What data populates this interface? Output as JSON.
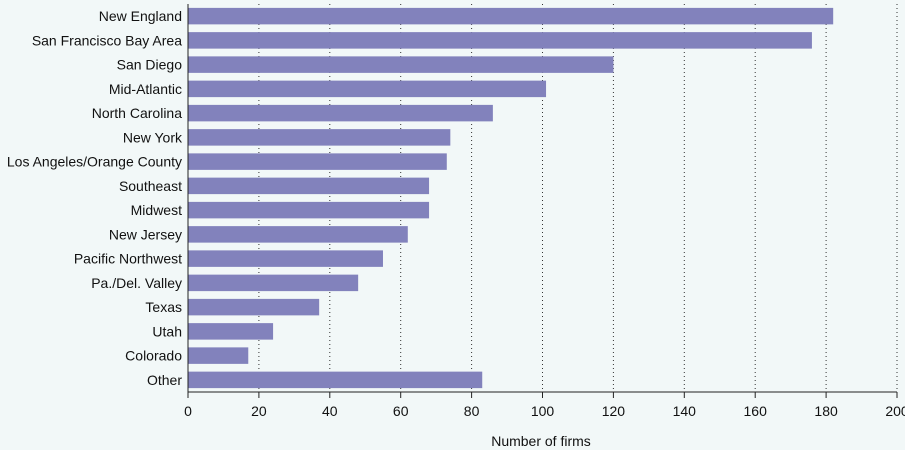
{
  "chart_data": {
    "type": "bar",
    "orientation": "horizontal",
    "categories": [
      "New England",
      "San Francisco Bay Area",
      "San Diego",
      "Mid-Atlantic",
      "North Carolina",
      "New York",
      "Los Angeles/Orange County",
      "Southeast",
      "Midwest",
      "New Jersey",
      "Pacific Northwest",
      "Pa./Del. Valley",
      "Texas",
      "Utah",
      "Colorado",
      "Other"
    ],
    "values": [
      182,
      176,
      120,
      101,
      86,
      74,
      73,
      68,
      68,
      62,
      55,
      48,
      37,
      24,
      17,
      83
    ],
    "xlabel": "Number of firms",
    "xlim": [
      0,
      200
    ],
    "xticks": [
      0,
      20,
      40,
      60,
      80,
      100,
      120,
      140,
      160,
      180,
      200
    ],
    "grid": "vertical dotted",
    "bar_color": "#8282bc"
  }
}
